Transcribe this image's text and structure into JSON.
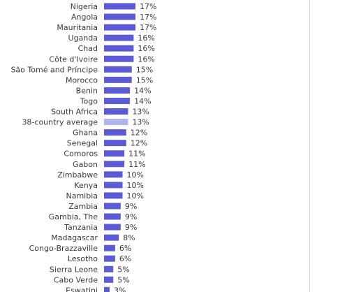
{
  "chart_data": {
    "type": "bar",
    "orientation": "horizontal",
    "categories": [
      "Nigeria",
      "Angola",
      "Mauritania",
      "Uganda",
      "Chad",
      "Côte d'Ivoire",
      "São Tomé and Príncipe",
      "Morocco",
      "Benin",
      "Togo",
      "South Africa",
      "38-country average",
      "Ghana",
      "Senegal",
      "Comoros",
      "Gabon",
      "Zimbabwe",
      "Kenya",
      "Namibia",
      "Zambia",
      "Gambia, The",
      "Tanzania",
      "Madagascar",
      "Congo-Brazzaville",
      "Lesotho",
      "Sierra Leone",
      "Cabo Verde",
      "Eswatini"
    ],
    "values": [
      17,
      17,
      17,
      16,
      16,
      16,
      15,
      15,
      14,
      14,
      13,
      13,
      12,
      12,
      11,
      11,
      10,
      10,
      10,
      9,
      9,
      9,
      8,
      6,
      6,
      5,
      5,
      3
    ],
    "value_labels": [
      "17%",
      "17%",
      "17%",
      "16%",
      "16%",
      "16%",
      "15%",
      "15%",
      "14%",
      "14%",
      "13%",
      "13%",
      "12%",
      "12%",
      "11%",
      "11%",
      "10%",
      "10%",
      "10%",
      "9%",
      "9%",
      "9%",
      "8%",
      "6%",
      "6%",
      "5%",
      "5%",
      "3%"
    ],
    "highlight_category": "38-country average",
    "colors": {
      "bar": "#5b5bd6",
      "highlight": "#b3b3ec"
    },
    "title": "",
    "xlabel": "",
    "ylabel": "",
    "xlim": [
      0,
      100
    ],
    "grid": false,
    "legend": "none"
  }
}
